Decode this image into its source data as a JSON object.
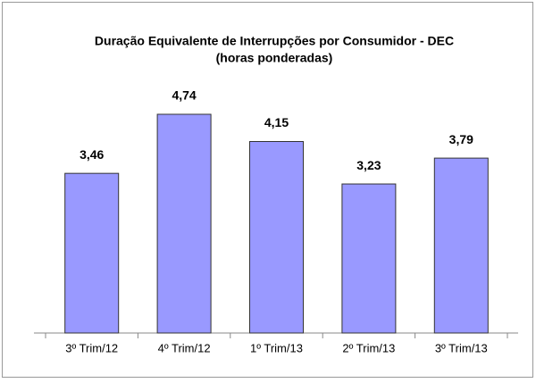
{
  "chart_data": {
    "type": "bar",
    "title": "Duração Equivalente de Interrupções por Consumidor - DEC",
    "subtitle": "(horas ponderadas)",
    "categories": [
      "3º Trim/12",
      "4º Trim/12",
      "1º Trim/13",
      "2º Trim/13",
      "3º Trim/13"
    ],
    "values": [
      3.46,
      4.74,
      4.15,
      3.23,
      3.79
    ],
    "value_labels": [
      "3,46",
      "4,74",
      "4,15",
      "3,23",
      "3,79"
    ],
    "color": "#9999ff"
  }
}
